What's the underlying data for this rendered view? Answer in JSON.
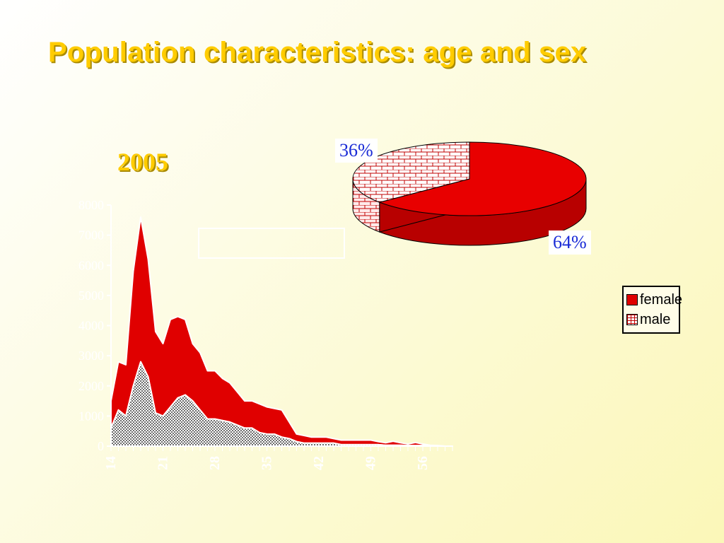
{
  "slide": {
    "title": "Population characteristics: age and sex",
    "year": "2005"
  },
  "colors": {
    "female": "#e00000",
    "female_dark": "#b80000",
    "male_pattern": "#c00000",
    "male_area": "#8a8a8a",
    "title": "#ffcc00",
    "percent_text": "#1a2bd6"
  },
  "chart_data": [
    {
      "type": "area",
      "stacked": true,
      "title": "",
      "xlabel": "",
      "ylabel": "",
      "x_tick_labels": [
        "14",
        "21",
        "28",
        "35",
        "42",
        "49",
        "56"
      ],
      "ylim": [
        0,
        8000
      ],
      "y_tick_labels": [
        "0",
        "1000",
        "2000",
        "3000",
        "4000",
        "5000",
        "6000",
        "7000",
        "8000"
      ],
      "x": [
        14,
        15,
        16,
        17,
        18,
        19,
        20,
        21,
        22,
        23,
        24,
        25,
        26,
        27,
        28,
        29,
        30,
        31,
        32,
        33,
        34,
        35,
        36,
        37,
        38,
        39,
        40,
        41,
        42,
        43,
        44,
        45,
        46,
        47,
        48,
        49,
        50,
        51,
        52,
        53,
        54,
        55,
        56,
        57,
        58,
        59,
        60
      ],
      "series": [
        {
          "name": "male",
          "values": [
            600,
            1200,
            1000,
            2000,
            2800,
            2300,
            1100,
            1000,
            1300,
            1600,
            1700,
            1500,
            1200,
            900,
            900,
            850,
            800,
            700,
            600,
            600,
            450,
            400,
            400,
            300,
            250,
            150,
            100,
            100,
            100,
            100,
            100,
            50,
            50,
            50,
            50,
            50,
            50,
            30,
            30,
            30,
            20,
            20,
            20,
            10,
            10,
            0,
            0
          ]
        },
        {
          "name": "female",
          "values": [
            900,
            1600,
            1700,
            3800,
            4800,
            3900,
            2700,
            2400,
            2900,
            2700,
            2500,
            1900,
            1900,
            1600,
            1600,
            1400,
            1300,
            1100,
            900,
            900,
            950,
            900,
            850,
            900,
            550,
            250,
            250,
            200,
            200,
            200,
            150,
            150,
            150,
            150,
            150,
            150,
            100,
            80,
            130,
            80,
            50,
            100,
            50,
            20,
            10,
            0,
            0
          ]
        }
      ]
    },
    {
      "type": "pie",
      "title": "",
      "legend_position": "right",
      "slices": [
        {
          "name": "female",
          "value": 64,
          "label": "64%"
        },
        {
          "name": "male",
          "value": 36,
          "label": "36%"
        }
      ],
      "legend": [
        "female",
        "male"
      ]
    }
  ]
}
